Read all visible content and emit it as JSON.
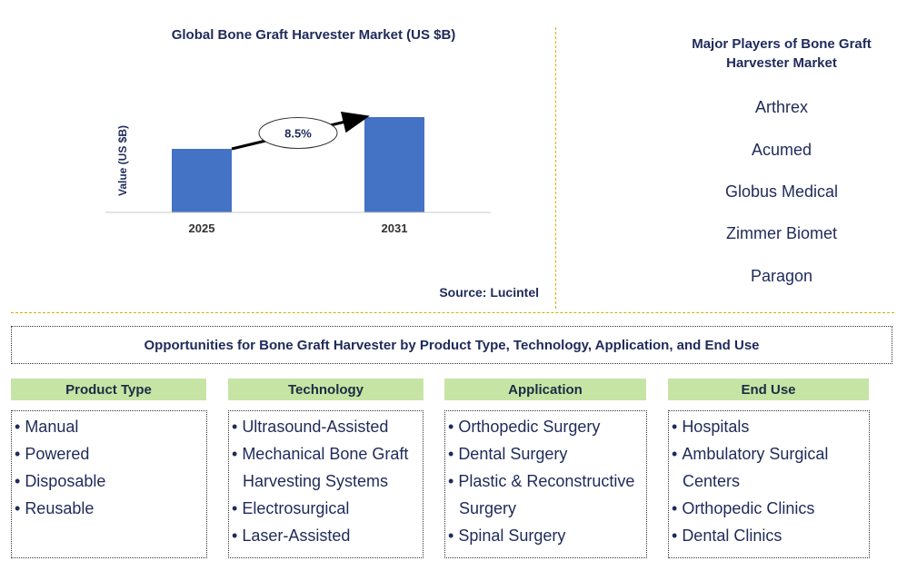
{
  "chart_data": {
    "type": "bar",
    "title": "Global Bone Graft Harvester Market (US $B)",
    "ylabel": "Value (US $B)",
    "xlabel": "",
    "categories": [
      "2025",
      "2031"
    ],
    "values": [
      1.0,
      1.5
    ],
    "ylim": [
      0,
      2.1
    ],
    "annotation": "8.5%",
    "bar_color": "#4472c4"
  },
  "source": "Source: Lucintel",
  "players": {
    "title": "Major Players of Bone Graft Harvester Market",
    "items": [
      "Arthrex",
      "Acumed",
      "Globus Medical",
      "Zimmer Biomet",
      "Paragon"
    ]
  },
  "opportunities": {
    "title": "Opportunities for Bone Graft Harvester by Product Type, Technology, Application, and End Use",
    "categories": [
      {
        "heading": "Product Type",
        "items": [
          "Manual",
          "Powered",
          "Disposable",
          "Reusable"
        ]
      },
      {
        "heading": "Technology",
        "items": [
          "Ultrasound-Assisted",
          "Mechanical Bone Graft Harvesting Systems",
          "Electrosurgical",
          "Laser-Assisted"
        ]
      },
      {
        "heading": "Application",
        "items": [
          "Orthopedic Surgery",
          "Dental Surgery",
          "Plastic & Reconstructive Surgery",
          "Spinal Surgery"
        ]
      },
      {
        "heading": "End Use",
        "items": [
          "Hospitals",
          "Ambulatory Surgical Centers",
          "Orthopedic Clinics",
          "Dental Clinics"
        ]
      }
    ]
  }
}
